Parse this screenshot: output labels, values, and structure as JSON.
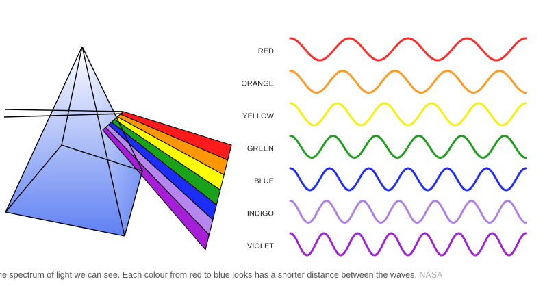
{
  "figure": {
    "waves": [
      {
        "label": "RED",
        "color": "#ff2a2a",
        "cycles": 4
      },
      {
        "label": "ORANGE",
        "color": "#ff9a22",
        "cycles": 4.5
      },
      {
        "label": "YELLOW",
        "color": "#f7ef10",
        "cycles": 5
      },
      {
        "label": "GREEN",
        "color": "#1f9e1f",
        "cycles": 5.5
      },
      {
        "label": "BLUE",
        "color": "#1f2cff",
        "cycles": 6
      },
      {
        "label": "INDIGO",
        "color": "#b080e6",
        "cycles": 6.5
      },
      {
        "label": "VIOLET",
        "color": "#a022d6",
        "cycles": 7
      }
    ],
    "prism_colors": {
      "glass_light": "#ffffff",
      "glass_dark": "#5f80f2",
      "outline": "#000000"
    },
    "spectrum_bands": [
      "#ff1b1b",
      "#ff9800",
      "#ffff00",
      "#1aa31a",
      "#1c2ef5",
      "#b686ef",
      "#a61ed8"
    ]
  },
  "caption": {
    "text": "he spectrum of light we can see. Each colour from red to blue looks has a shorter distance between the waves.",
    "credit": "NASA"
  }
}
